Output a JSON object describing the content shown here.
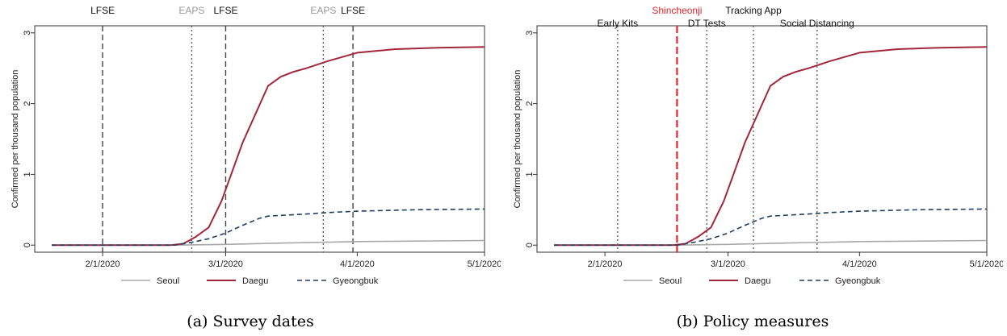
{
  "colors": {
    "seoul": "#a8a8a8",
    "daegu": "#a3263b",
    "gyeongbuk": "#1f3e60",
    "red": "#e8242c",
    "black": "#111111",
    "gray": "#999999"
  },
  "legend_placement": "bottom",
  "chart_data": [
    {
      "type": "line",
      "ylabel": "Confirmed per thousand population",
      "xlabel": "",
      "xlim": [
        "2020-01-16",
        "2020-05-01"
      ],
      "ylim": [
        -0.1,
        3.1
      ],
      "xticks": [
        {
          "date": "2020-02-01",
          "label": "2/1/2020"
        },
        {
          "date": "2020-03-01",
          "label": "3/1/2020"
        },
        {
          "date": "2020-04-01",
          "label": "4/1/2020"
        },
        {
          "date": "2020-05-01",
          "label": "5/1/2020"
        }
      ],
      "yticks": [
        0,
        1,
        2,
        3
      ],
      "caption": "(a) Survey dates",
      "series": [
        {
          "name": "Seoul",
          "style": "solid",
          "color": "seoul",
          "points": [
            [
              "2020-01-20",
              0
            ],
            [
              "2020-02-18",
              0
            ],
            [
              "2020-03-01",
              0.01
            ],
            [
              "2020-03-15",
              0.03
            ],
            [
              "2020-04-01",
              0.05
            ],
            [
              "2020-05-01",
              0.065
            ]
          ]
        },
        {
          "name": "Daegu",
          "style": "solid",
          "color": "daegu",
          "points": [
            [
              "2020-01-20",
              0
            ],
            [
              "2020-02-17",
              0
            ],
            [
              "2020-02-20",
              0.02
            ],
            [
              "2020-02-23",
              0.12
            ],
            [
              "2020-02-26",
              0.25
            ],
            [
              "2020-02-29",
              0.62
            ],
            [
              "2020-03-02",
              0.95
            ],
            [
              "2020-03-05",
              1.45
            ],
            [
              "2020-03-08",
              1.85
            ],
            [
              "2020-03-11",
              2.25
            ],
            [
              "2020-03-14",
              2.38
            ],
            [
              "2020-03-17",
              2.45
            ],
            [
              "2020-03-20",
              2.5
            ],
            [
              "2020-03-25",
              2.6
            ],
            [
              "2020-04-01",
              2.72
            ],
            [
              "2020-04-10",
              2.77
            ],
            [
              "2020-04-20",
              2.79
            ],
            [
              "2020-05-01",
              2.8
            ]
          ]
        },
        {
          "name": "Gyeongbuk",
          "style": "dashed",
          "color": "gyeongbuk",
          "points": [
            [
              "2020-01-20",
              0
            ],
            [
              "2020-02-18",
              0
            ],
            [
              "2020-02-22",
              0.04
            ],
            [
              "2020-02-26",
              0.09
            ],
            [
              "2020-03-01",
              0.17
            ],
            [
              "2020-03-05",
              0.28
            ],
            [
              "2020-03-09",
              0.38
            ],
            [
              "2020-03-11",
              0.41
            ],
            [
              "2020-03-20",
              0.44
            ],
            [
              "2020-03-25",
              0.46
            ],
            [
              "2020-04-01",
              0.48
            ],
            [
              "2020-04-15",
              0.5
            ],
            [
              "2020-05-01",
              0.51
            ]
          ]
        }
      ],
      "vlines": [
        {
          "date": "2020-02-01",
          "label": "LFSE",
          "style": "dashed",
          "label_color": "black",
          "row": 0
        },
        {
          "date": "2020-02-22",
          "label": "EAPS",
          "style": "dotted",
          "label_color": "gray",
          "row": 0
        },
        {
          "date": "2020-03-01",
          "label": "LFSE",
          "style": "dashed",
          "label_color": "black",
          "row": 0
        },
        {
          "date": "2020-03-24",
          "label": "EAPS",
          "style": "dotted",
          "label_color": "gray",
          "row": 0
        },
        {
          "date": "2020-03-31",
          "label": "LFSE",
          "style": "dashed",
          "label_color": "black",
          "row": 0
        }
      ]
    },
    {
      "type": "line",
      "ylabel": "Confirmed per thousand population",
      "xlabel": "",
      "xlim": [
        "2020-01-16",
        "2020-05-01"
      ],
      "ylim": [
        -0.1,
        3.1
      ],
      "xticks": [
        {
          "date": "2020-02-01",
          "label": "2/1/2020"
        },
        {
          "date": "2020-03-01",
          "label": "3/1/2020"
        },
        {
          "date": "2020-04-01",
          "label": "4/1/2020"
        },
        {
          "date": "2020-05-01",
          "label": "5/1/2020"
        }
      ],
      "yticks": [
        0,
        1,
        2,
        3
      ],
      "caption": "(b) Policy measures",
      "series": [
        {
          "name": "Seoul",
          "style": "solid",
          "color": "seoul",
          "points": [
            [
              "2020-01-20",
              0
            ],
            [
              "2020-02-18",
              0
            ],
            [
              "2020-03-01",
              0.01
            ],
            [
              "2020-03-15",
              0.03
            ],
            [
              "2020-04-01",
              0.05
            ],
            [
              "2020-05-01",
              0.065
            ]
          ]
        },
        {
          "name": "Daegu",
          "style": "solid",
          "color": "daegu",
          "points": [
            [
              "2020-01-20",
              0
            ],
            [
              "2020-02-17",
              0
            ],
            [
              "2020-02-20",
              0.02
            ],
            [
              "2020-02-23",
              0.12
            ],
            [
              "2020-02-26",
              0.25
            ],
            [
              "2020-02-29",
              0.62
            ],
            [
              "2020-03-02",
              0.95
            ],
            [
              "2020-03-05",
              1.45
            ],
            [
              "2020-03-08",
              1.85
            ],
            [
              "2020-03-11",
              2.25
            ],
            [
              "2020-03-14",
              2.38
            ],
            [
              "2020-03-17",
              2.45
            ],
            [
              "2020-03-20",
              2.5
            ],
            [
              "2020-03-25",
              2.6
            ],
            [
              "2020-04-01",
              2.72
            ],
            [
              "2020-04-10",
              2.77
            ],
            [
              "2020-04-20",
              2.79
            ],
            [
              "2020-05-01",
              2.8
            ]
          ]
        },
        {
          "name": "Gyeongbuk",
          "style": "dashed",
          "color": "gyeongbuk",
          "points": [
            [
              "2020-01-20",
              0
            ],
            [
              "2020-02-18",
              0
            ],
            [
              "2020-02-22",
              0.04
            ],
            [
              "2020-02-26",
              0.09
            ],
            [
              "2020-03-01",
              0.17
            ],
            [
              "2020-03-05",
              0.28
            ],
            [
              "2020-03-09",
              0.38
            ],
            [
              "2020-03-11",
              0.41
            ],
            [
              "2020-03-20",
              0.44
            ],
            [
              "2020-03-25",
              0.46
            ],
            [
              "2020-04-01",
              0.48
            ],
            [
              "2020-04-15",
              0.5
            ],
            [
              "2020-05-01",
              0.51
            ]
          ]
        }
      ],
      "vlines": [
        {
          "date": "2020-02-04",
          "label": "Early Kits",
          "style": "dotted",
          "label_color": "black",
          "row": 1
        },
        {
          "date": "2020-02-18",
          "label": "Shincheonji",
          "style": "dashed-red",
          "label_color": "red",
          "row": 0
        },
        {
          "date": "2020-02-25",
          "label": "DT Tests",
          "style": "dotted",
          "label_color": "black",
          "row": 1
        },
        {
          "date": "2020-03-07",
          "label": "Tracking App",
          "style": "dotted",
          "label_color": "black",
          "row": 0
        },
        {
          "date": "2020-03-22",
          "label": "Social Distancing",
          "style": "dotted",
          "label_color": "black",
          "row": 1
        }
      ]
    }
  ]
}
